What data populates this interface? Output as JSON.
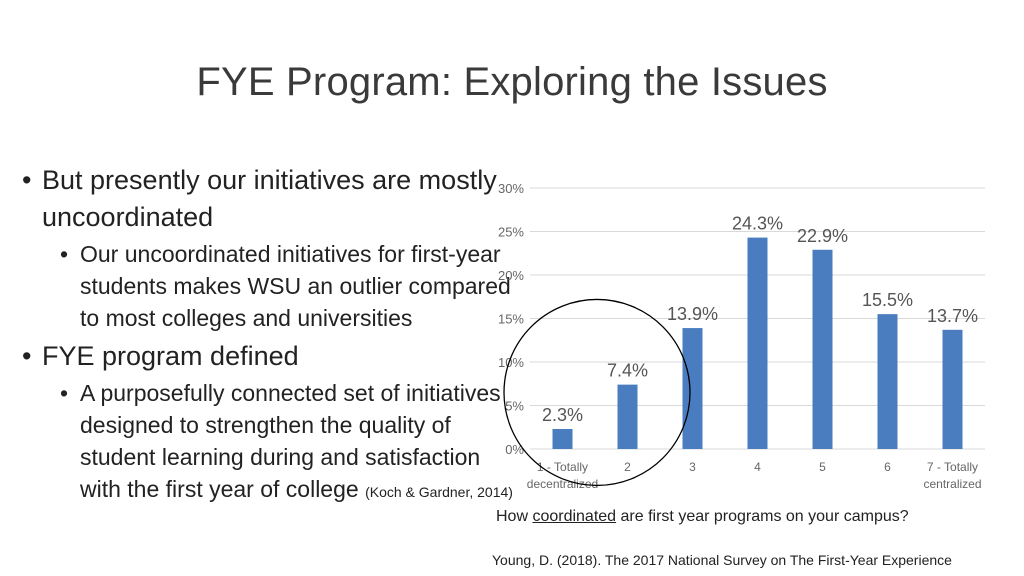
{
  "slide": {
    "title": "FYE Program:  Exploring the Issues",
    "bullets": [
      {
        "text": "But presently our initiatives are mostly uncoordinated",
        "sub": [
          "Our uncoordinated initiatives for first-year students makes WSU an outlier compared to most colleges and universities"
        ]
      },
      {
        "text": "FYE program defined",
        "sub": [
          "A purposefully connected set of initiatives designed to strengthen the quality of student learning during and satisfaction with the first year of college"
        ],
        "citation": "(Koch & Gardner, 2014)"
      }
    ],
    "caption_prefix": "How ",
    "caption_underlined": "coordinated",
    "caption_suffix": " are first year programs on your campus?",
    "source": "Young, D. (2018).  The 2017 National Survey on The First-Year Experience"
  },
  "chart_data": {
    "type": "bar",
    "title": "",
    "xlabel": "",
    "ylabel": "",
    "ylim": [
      0,
      30
    ],
    "yticks": [
      "0%",
      "5%",
      "10%",
      "15%",
      "20%",
      "25%",
      "30%"
    ],
    "ytick_values": [
      0,
      5,
      10,
      15,
      20,
      25,
      30
    ],
    "categories": [
      [
        "1 - Totally",
        "decentralized"
      ],
      [
        "2"
      ],
      [
        "3"
      ],
      [
        "4"
      ],
      [
        "5"
      ],
      [
        "6"
      ],
      [
        "7 - Totally",
        "centralized"
      ]
    ],
    "values": [
      2.3,
      7.4,
      13.9,
      24.3,
      22.9,
      15.5,
      13.7
    ],
    "data_labels": [
      "2.3%",
      "7.4%",
      "13.9%",
      "24.3%",
      "22.9%",
      "15.5%",
      "13.7%"
    ],
    "grid": true,
    "annotation": "circle around categories 1 and 2",
    "colors": {
      "bar": "#4a7cc0",
      "grid": "#d9d9d9",
      "annotation": "#000000"
    }
  }
}
